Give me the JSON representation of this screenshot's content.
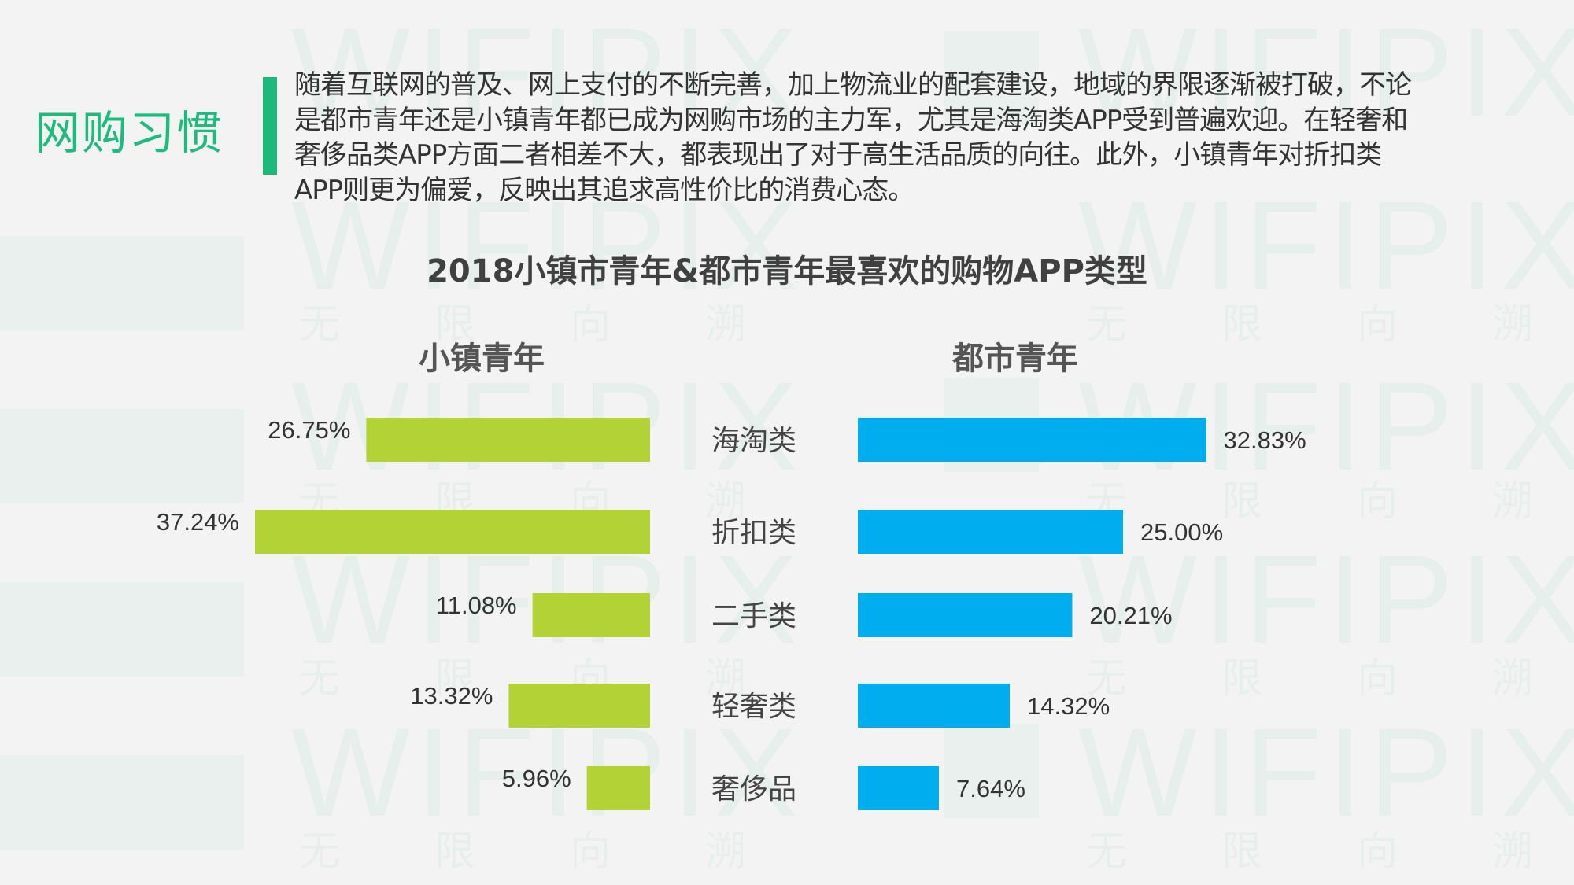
{
  "section_title": "网购习惯",
  "intro_text": "随着互联网的普及、网上支付的不断完善，加上物流业的配套建设，地域的界限逐渐被打破，不论是都市青年还是小镇青年都已成为网购市场的主力军，尤其是海淘类APP受到普遍欢迎。在轻奢和奢侈品类APP方面二者相差不大，都表现出了对于高生活品质的向往。此外，小镇青年对折扣类APP则更为偏爱，反映出其追求高性价比的消费心态。",
  "watermark": {
    "brand": "WIFIPIX",
    "cn": "无限向溯"
  },
  "colors": {
    "accent": "#1db97b",
    "town": "#b2d235",
    "city": "#00aeef"
  },
  "chart_data": {
    "type": "bar",
    "orientation": "horizontal-butterfly",
    "title": "2018小镇市青年&都市青年最喜欢的购物APP类型",
    "categories": [
      "海淘类",
      "折扣类",
      "二手类",
      "轻奢类",
      "奢侈品"
    ],
    "series": [
      {
        "name": "小镇青年",
        "values": [
          26.75,
          37.24,
          11.08,
          13.32,
          5.96
        ],
        "labels": [
          "26.75%",
          "37.24%",
          "11.08%",
          "13.32%",
          "5.96%"
        ],
        "color": "#b2d235",
        "direction": "left"
      },
      {
        "name": "都市青年",
        "values": [
          32.83,
          25.0,
          20.21,
          14.32,
          7.64
        ],
        "labels": [
          "32.83%",
          "25.00%",
          "20.21%",
          "14.32%",
          "7.64%"
        ],
        "color": "#00aeef",
        "direction": "right"
      }
    ],
    "unit": "%",
    "grid": false,
    "legend": "none"
  }
}
